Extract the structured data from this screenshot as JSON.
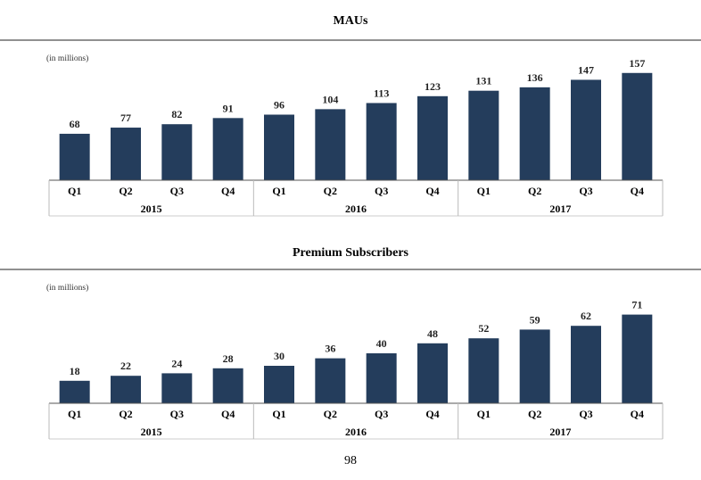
{
  "page_number": "98",
  "chart_data": [
    {
      "type": "bar",
      "title": "MAUs",
      "unit_note": "(in millions)",
      "bar_color": "#243d5c",
      "categories": [
        "Q1",
        "Q2",
        "Q3",
        "Q4",
        "Q1",
        "Q2",
        "Q3",
        "Q4",
        "Q1",
        "Q2",
        "Q3",
        "Q4"
      ],
      "groups": [
        {
          "label": "2015",
          "count": 4
        },
        {
          "label": "2016",
          "count": 4
        },
        {
          "label": "2017",
          "count": 4
        }
      ],
      "values": [
        68,
        77,
        82,
        91,
        96,
        104,
        113,
        123,
        131,
        136,
        147,
        157
      ],
      "data_labels": [
        "68",
        "77",
        "82",
        "91",
        "96",
        "104",
        "113",
        "123",
        "131",
        "136",
        "147",
        "157"
      ],
      "ylim": [
        0,
        175
      ]
    },
    {
      "type": "bar",
      "title": "Premium Subscribers",
      "unit_note": "(in millions)",
      "bar_color": "#243d5c",
      "categories": [
        "Q1",
        "Q2",
        "Q3",
        "Q4",
        "Q1",
        "Q2",
        "Q3",
        "Q4",
        "Q1",
        "Q2",
        "Q3",
        "Q4"
      ],
      "groups": [
        {
          "label": "2015",
          "count": 4
        },
        {
          "label": "2016",
          "count": 4
        },
        {
          "label": "2017",
          "count": 4
        }
      ],
      "values": [
        18,
        22,
        24,
        28,
        30,
        36,
        40,
        48,
        52,
        59,
        62,
        71
      ],
      "data_labels": [
        "18",
        "22",
        "24",
        "28",
        "30",
        "36",
        "40",
        "48",
        "52",
        "59",
        "62",
        "71"
      ],
      "ylim": [
        0,
        80
      ]
    }
  ]
}
